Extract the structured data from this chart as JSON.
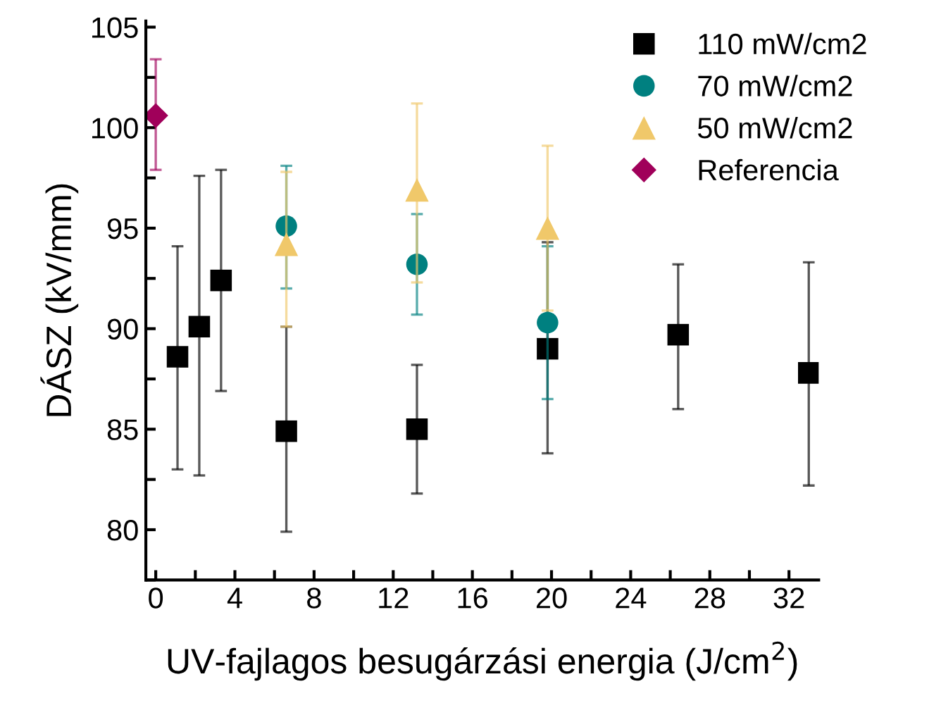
{
  "chart_data": {
    "type": "scatter",
    "xlabel": "UV-fajlagos besugárzási energia (J/cm$^{2}$)",
    "ylabel": "DÁSZ (kV/mm)",
    "xlim": [
      -0.5,
      33.5
    ],
    "ylim": [
      77.5,
      105.3
    ],
    "xticks": [
      0,
      {
        "value": 2,
        "label": null
      },
      4,
      {
        "value": 6,
        "label": null
      },
      8,
      {
        "value": 10,
        "label": null
      },
      12,
      {
        "value": 14,
        "label": null
      },
      16,
      {
        "value": 18,
        "label": null
      },
      20,
      {
        "value": 22,
        "label": null
      },
      24,
      {
        "value": 26,
        "label": null
      },
      28,
      {
        "value": 30,
        "label": null
      },
      32
    ],
    "yticks": [
      {
        "value": 77.5,
        "label": null
      },
      80,
      {
        "value": 82.5,
        "label": null
      },
      85,
      {
        "value": 87.5,
        "label": null
      },
      90,
      {
        "value": 92.5,
        "label": null
      },
      95,
      {
        "value": 97.5,
        "label": null
      },
      100,
      {
        "value": 102.5,
        "label": null
      },
      105
    ],
    "grid": false,
    "legend": "top right",
    "series": [
      {
        "name": "110 mW/cm2",
        "color": "#000000",
        "marker": "square",
        "x": [
          1.1,
          2.2,
          3.3,
          6.6,
          13.2,
          19.8,
          26.4,
          33.0
        ],
        "values": [
          88.6,
          90.1,
          92.4,
          84.9,
          85.0,
          89.0,
          89.7,
          87.8
        ],
        "errors": [
          [
            83.0,
            94.1
          ],
          [
            82.7,
            97.6
          ],
          [
            86.9,
            97.9
          ],
          [
            79.9,
            90.1
          ],
          [
            81.8,
            88.2
          ],
          [
            83.8,
            94.3
          ],
          [
            86.0,
            93.2
          ],
          [
            82.2,
            93.3
          ]
        ]
      },
      {
        "name": "70 mW/cm2",
        "color": "#008080",
        "marker": "circle",
        "x": [
          6.6,
          13.2,
          19.8
        ],
        "values": [
          95.1,
          93.2,
          90.3
        ],
        "errors": [
          [
            92.0,
            98.1
          ],
          [
            90.7,
            95.7
          ],
          [
            86.5,
            94.1
          ]
        ]
      },
      {
        "name": "50 mW/cm2",
        "color": "#f0c86a",
        "marker": "triangle",
        "x": [
          6.6,
          13.2,
          19.8
        ],
        "values": [
          94.2,
          96.9,
          95.0
        ],
        "errors": [
          [
            90.1,
            97.8
          ],
          [
            92.3,
            101.2
          ],
          [
            90.9,
            99.1
          ]
        ]
      },
      {
        "name": "Referencia",
        "color": "#a0005a",
        "marker": "diamond",
        "x": [
          0
        ],
        "values": [
          100.6
        ],
        "errors": [
          [
            97.9,
            103.4
          ]
        ]
      }
    ]
  }
}
